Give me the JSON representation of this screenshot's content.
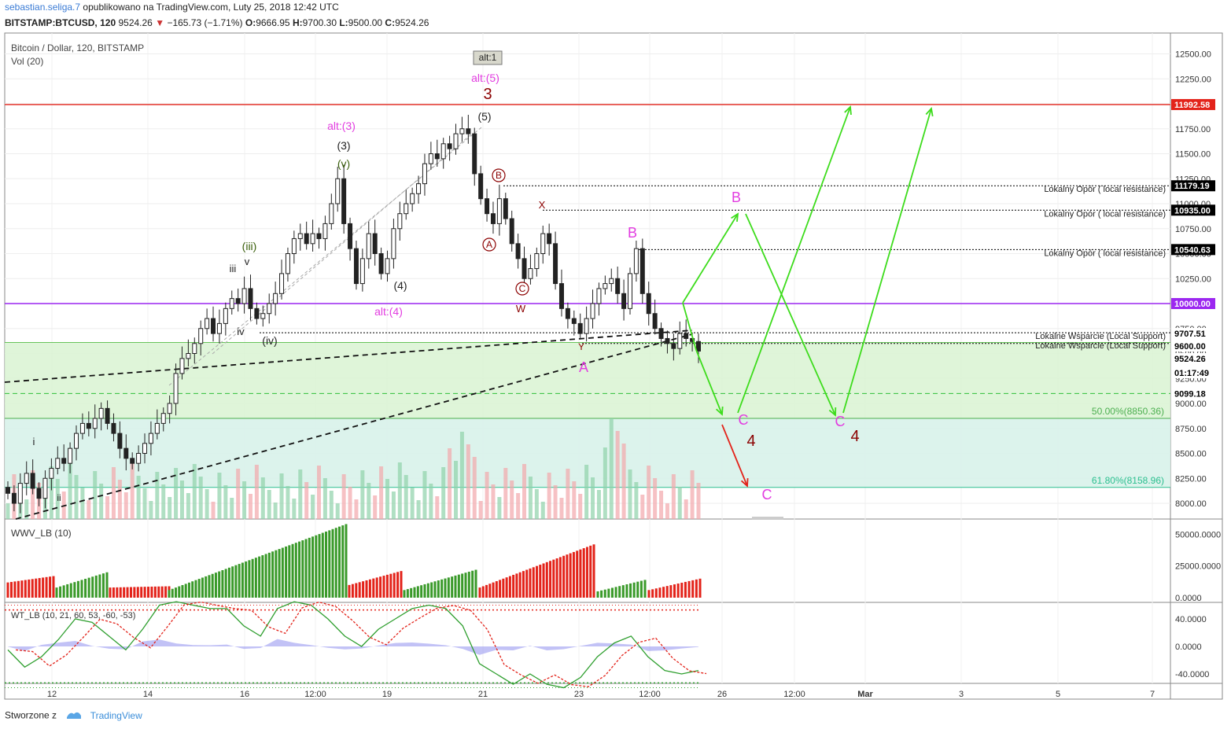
{
  "header": {
    "user": "sebastian.seliga.7",
    "published": "opublikowano na TradingView.com, Luty 25, 2018 12:42 UTC",
    "symbol": "BITSTAMP:BTCUSD, 120",
    "last": "9524.26",
    "change": "−165.73 (−1.71%)",
    "open": "9666.95",
    "high": "9700.30",
    "low": "9500.00",
    "close": "9524.26"
  },
  "footer": {
    "created": "Stworzone z",
    "brand": "TradingView"
  },
  "chart_data": {
    "type": "candlestick",
    "title": "Bitcoin / Dollar, 120, BITSTAMP",
    "vol_label": "Vol (20)",
    "ylim": [
      7800,
      12650
    ],
    "y_ticks": [
      8000,
      8250,
      8500,
      8750,
      9000,
      9250,
      9500,
      9750,
      10000,
      10250,
      10500,
      10750,
      11000,
      11250,
      11500,
      11750,
      12000,
      12250,
      12500
    ],
    "y_tick_labels": [
      "8000.00",
      "8250.00",
      "8500.00",
      "8750.00",
      "9000.00",
      "9250.00",
      "9500.00",
      "9750.00",
      "10000.00",
      "10250.00",
      "10500.00",
      "10750.00",
      "11000.00",
      "11250.00",
      "11500.00",
      "11750.00",
      "12000.00",
      "12250.00",
      "12500.00"
    ],
    "x_ticks": [
      "12",
      "14",
      "16",
      "12:00",
      "19",
      "21",
      "23",
      "12:00",
      "26",
      "12:00",
      "Mar",
      "3",
      "5",
      "7"
    ],
    "price_closes": [
      8100,
      8000,
      8200,
      8300,
      8150,
      8050,
      8250,
      8350,
      8450,
      8400,
      8550,
      8700,
      8800,
      8750,
      8850,
      8950,
      8800,
      8700,
      8550,
      8450,
      8400,
      8500,
      8600,
      8700,
      8800,
      8900,
      9000,
      9300,
      9450,
      9500,
      9600,
      9750,
      9850,
      9700,
      9800,
      9950,
      10050,
      10000,
      10150,
      9950,
      9850,
      9900,
      10000,
      10100,
      10300,
      10500,
      10650,
      10700,
      10600,
      10700,
      10650,
      10800,
      11000,
      11250,
      10800,
      10550,
      10200,
      10450,
      10700,
      10500,
      10300,
      10450,
      10750,
      10900,
      11000,
      11100,
      11200,
      11400,
      11500,
      11450,
      11600,
      11550,
      11700,
      11750,
      11700,
      11300,
      11050,
      10900,
      10800,
      11050,
      10850,
      10600,
      10450,
      10250,
      10350,
      10500,
      10700,
      10600,
      10200,
      9950,
      9850,
      9800,
      9700,
      9850,
      10000,
      10150,
      10200,
      10250,
      10100,
      9950,
      10300,
      10550,
      10100,
      9900,
      9750,
      9650,
      9600,
      9550,
      9700,
      9650,
      9620,
      9524
    ],
    "levels": [
      {
        "price": "11992.58",
        "color": "#e3231a",
        "note": ""
      },
      {
        "price": "11179.19",
        "color": "#000000",
        "note": "Lokalny Opór ( local resistance)"
      },
      {
        "price": "10935.00",
        "color": "#000000",
        "note": "Lokalny Opór ( local resistance)"
      },
      {
        "price": "10540.63",
        "color": "#000000",
        "note": "Lokalny Opór ( local resistance)"
      },
      {
        "price": "10000.00",
        "color": "#9c27f0",
        "note": ""
      },
      {
        "price": "9707.51",
        "color": "#000000",
        "note": "Lokalne Wsparcie (Local Support)"
      },
      {
        "price": "9600.00",
        "color": "#000000",
        "note": "Lokalne Wsparcie (Local Support)"
      },
      {
        "price": "9524.26",
        "color": "#000000",
        "note": ""
      },
      {
        "price": "01:17:49",
        "color": "#000000",
        "note": ""
      },
      {
        "price": "9099.18",
        "color": "#2fbf39",
        "note": ""
      }
    ],
    "fib": [
      {
        "label": "50.00%(8850.36)",
        "price": 8850.36
      },
      {
        "label": "61.80%(8158.96)",
        "price": 8158.96
      }
    ],
    "wave_labels": [
      "alt:1",
      "alt:(5)",
      "3",
      "(5)",
      "alt:(3)",
      "(3)",
      "(v)",
      "(iii)",
      "v",
      "iii",
      "iv",
      "(iv)",
      "(4)",
      "alt:(4)",
      "i",
      "ii",
      "B",
      "A",
      "C",
      "W",
      "X",
      "Y",
      "B",
      "A",
      "B",
      "C",
      "4",
      "C",
      "C",
      "4"
    ],
    "indicators": [
      {
        "name": "WWV_LB (10)",
        "ticks": [
          "50000.0000",
          "25000.0000",
          "0.0000"
        ],
        "range": [
          0,
          62000
        ]
      },
      {
        "name": "WT_LB (10, 21, 60, 53, -60, -53)",
        "ticks": [
          "40.0000",
          "0.0000",
          "-40.0000"
        ],
        "range": [
          -60,
          60
        ]
      }
    ]
  }
}
